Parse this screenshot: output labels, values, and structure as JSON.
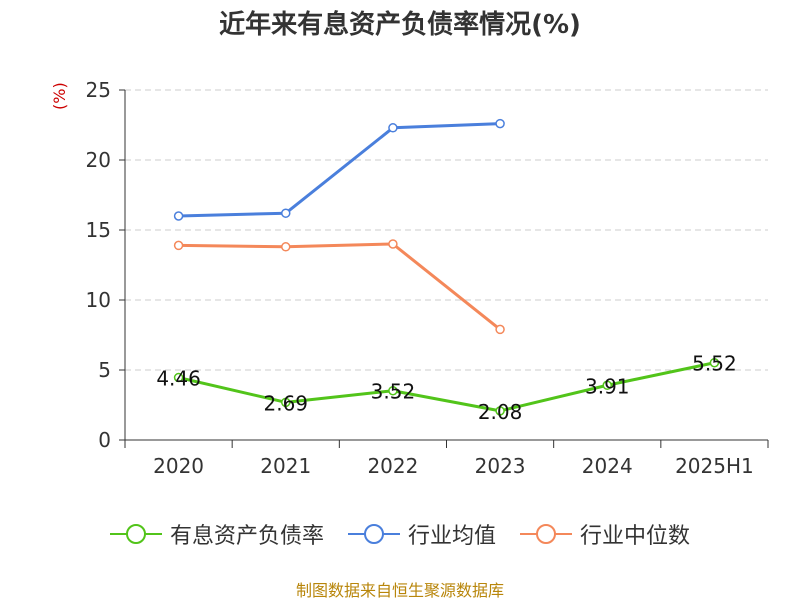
{
  "chart_data": {
    "type": "line",
    "title": "近年来有息资产负债率情况(%)",
    "ylabel": "(%)",
    "categories": [
      "2020",
      "2021",
      "2022",
      "2023",
      "2024",
      "2025H1"
    ],
    "ylim": [
      0,
      25
    ],
    "yticks": [
      0,
      5,
      10,
      15,
      20,
      25
    ],
    "grid": true,
    "legend_position": "bottom",
    "series": [
      {
        "name": "有息资产负债率",
        "color": "#52c41a",
        "values": [
          4.46,
          2.69,
          3.52,
          2.08,
          3.91,
          5.52
        ],
        "data_labels": [
          "4.46",
          "2.69",
          "3.52",
          "2.08",
          "3.91",
          "5.52"
        ]
      },
      {
        "name": "行业均值",
        "color": "#4a7fdc",
        "values": [
          16.0,
          16.2,
          22.3,
          22.6,
          null,
          null
        ]
      },
      {
        "name": "行业中位数",
        "color": "#f4885a",
        "values": [
          13.9,
          13.8,
          14.0,
          7.9,
          null,
          null
        ]
      }
    ],
    "source": "制图数据来自恒生聚源数据库"
  }
}
